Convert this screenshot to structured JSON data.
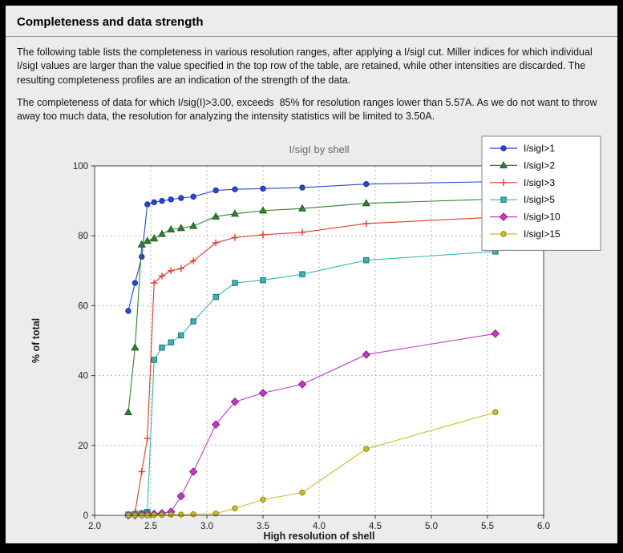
{
  "window": {
    "title": "Completeness and data strength"
  },
  "paragraphs": {
    "p1": "The following table lists the completeness in various resolution ranges, after applying a I/sigI cut. Miller indices for which individual I/sigI values are larger than the value specified in the top row of the table, are retained, while other intensities are discarded. The resulting completeness profiles are an indication of the strength of the data.",
    "p2": "The completeness of data for which I/sig(I)>3.00, exceeds  85% for resolution ranges lower than 5.57A. As we do not want to throw away too much data, the resolution for analyzing the intensity statistics will be limited to 3.50A."
  },
  "chart_data": {
    "type": "line",
    "title": "I/sigI by shell",
    "xlabel": "High resolution of shell",
    "ylabel": "% of total",
    "xlim": [
      2.0,
      6.0
    ],
    "ylim": [
      0,
      100
    ],
    "xticks": [
      2.0,
      2.5,
      3.0,
      3.5,
      4.0,
      4.5,
      5.0,
      5.5,
      6.0
    ],
    "yticks": [
      0,
      20,
      40,
      60,
      80,
      100
    ],
    "grid": true,
    "legend_position": "upper-right",
    "plot_bg": "#ffffff",
    "figure_bg": "#ececec",
    "x": [
      2.3,
      2.36,
      2.42,
      2.47,
      2.53,
      2.6,
      2.68,
      2.77,
      2.88,
      3.08,
      3.25,
      3.5,
      3.85,
      4.42,
      5.57
    ],
    "series": [
      {
        "name": "I/sigI>1",
        "color": "#2846cf",
        "edge": "#1c33a8",
        "marker": "circle",
        "values": [
          58.5,
          66.5,
          74.0,
          89.0,
          89.6,
          90.0,
          90.4,
          90.8,
          91.2,
          93.0,
          93.3,
          93.5,
          93.8,
          94.8,
          95.5
        ]
      },
      {
        "name": "I/sigI>2",
        "color": "#318231",
        "edge": "#1e5c1e",
        "marker": "triangle",
        "values": [
          29.5,
          48.0,
          77.5,
          78.5,
          79.2,
          80.5,
          81.8,
          82.2,
          82.8,
          85.5,
          86.3,
          87.2,
          87.8,
          89.3,
          90.5
        ]
      },
      {
        "name": "I/sigI>3",
        "color": "#dd3c2e",
        "edge": "#b22417",
        "marker": "plus",
        "values": [
          0.3,
          0.8,
          12.5,
          22.0,
          66.5,
          68.5,
          70.0,
          70.6,
          72.8,
          78.0,
          79.5,
          80.3,
          81.0,
          83.5,
          85.3
        ]
      },
      {
        "name": "I/sigI>5",
        "color": "#3cb4b4",
        "edge": "#1a7070",
        "marker": "square",
        "values": [
          0.2,
          0.4,
          0.6,
          1.0,
          44.5,
          48.0,
          49.5,
          51.5,
          55.5,
          62.5,
          66.5,
          67.3,
          69.0,
          73.0,
          75.5
        ]
      },
      {
        "name": "I/sigI>10",
        "color": "#c23ac2",
        "edge": "#8a1d8a",
        "marker": "diamond",
        "values": [
          0.0,
          0.0,
          0.2,
          0.3,
          0.4,
          0.6,
          1.0,
          5.5,
          12.5,
          26.0,
          32.5,
          35.0,
          37.5,
          46.0,
          52.0
        ]
      },
      {
        "name": "I/sigI>15",
        "color": "#c9bd2f",
        "edge": "#8f8513",
        "marker": "circle",
        "values": [
          0.0,
          0.0,
          0.0,
          0.0,
          0.1,
          0.1,
          0.2,
          0.2,
          0.3,
          0.5,
          2.0,
          4.5,
          6.5,
          19.0,
          29.5
        ]
      }
    ]
  }
}
